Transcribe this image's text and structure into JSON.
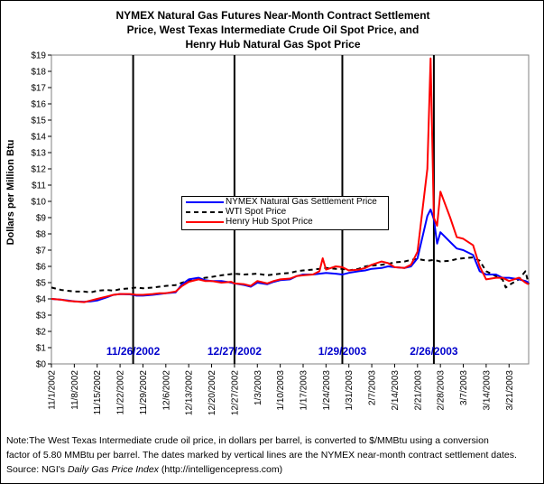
{
  "title_lines": [
    "NYMEX Natural Gas Futures Near-Month Contract Settlement",
    "Price, West Texas Intermediate Crude Oil Spot Price, and",
    "Henry Hub Natural Gas Spot Price"
  ],
  "footnote": {
    "line1": "Note:The West Texas Intermediate crude oil price, in dollars per barrel, is converted to $/MMBtu using a conversion",
    "line2": "factor of 5.80 MMBtu per barrel. The dates marked by vertical lines are the NYMEX near-month contract settlement dates.",
    "line3_prefix": "Source:  NGI's ",
    "line3_italic": "Daily Gas Price Index",
    "line3_suffix": " (http://intelligencepress.com)"
  },
  "chart_data": {
    "type": "line",
    "title": "NYMEX Natural Gas Futures Near-Month Contract Settlement Price, West Texas Intermediate Crude Oil Spot Price, and Henry Hub Natural Gas Spot Price",
    "xlabel": "",
    "ylabel": "Dollars per Million Btu",
    "ylim": [
      0,
      19
    ],
    "y_ticks": [
      "$0",
      "$1",
      "$2",
      "$3",
      "$4",
      "$5",
      "$6",
      "$7",
      "$8",
      "$9",
      "$10",
      "$11",
      "$12",
      "$13",
      "$14",
      "$15",
      "$16",
      "$17",
      "$18",
      "$19"
    ],
    "x_range": [
      "2002-11-01",
      "2003-03-27"
    ],
    "x_ticks": [
      "11/1/2002",
      "11/8/2002",
      "11/15/2002",
      "11/22/2002",
      "11/29/2002",
      "12/6/2002",
      "12/13/2002",
      "12/20/2002",
      "12/27/2002",
      "1/3/2003",
      "1/10/2003",
      "1/17/2003",
      "1/24/2003",
      "1/31/2003",
      "2/7/2003",
      "2/14/2003",
      "2/21/2003",
      "2/28/2003",
      "3/7/2003",
      "3/14/2003",
      "3/21/2003"
    ],
    "grid": false,
    "legend_position": "center-left",
    "settlement_lines": [
      {
        "date": "2002-11-26",
        "label": "11/26/2002"
      },
      {
        "date": "2002-12-27",
        "label": "12/27/2002"
      },
      {
        "date": "2003-01-29",
        "label": "1/29/2003"
      },
      {
        "date": "2003-02-26",
        "label": "2/26/2003"
      }
    ],
    "series": [
      {
        "name": "NYMEX Natural Gas Settlement Price",
        "color": "#0000ff",
        "style": "solid",
        "points": [
          [
            "2002-11-01",
            4.0
          ],
          [
            "2002-11-04",
            3.95
          ],
          [
            "2002-11-06",
            3.9
          ],
          [
            "2002-11-08",
            3.85
          ],
          [
            "2002-11-11",
            3.82
          ],
          [
            "2002-11-13",
            3.85
          ],
          [
            "2002-11-15",
            3.9
          ],
          [
            "2002-11-18",
            4.1
          ],
          [
            "2002-11-20",
            4.25
          ],
          [
            "2002-11-22",
            4.3
          ],
          [
            "2002-11-25",
            4.28
          ],
          [
            "2002-11-26",
            4.25
          ],
          [
            "2002-11-27",
            4.2
          ],
          [
            "2002-11-29",
            4.2
          ],
          [
            "2002-12-02",
            4.25
          ],
          [
            "2002-12-04",
            4.3
          ],
          [
            "2002-12-06",
            4.35
          ],
          [
            "2002-12-09",
            4.4
          ],
          [
            "2002-12-11",
            4.9
          ],
          [
            "2002-12-13",
            5.2
          ],
          [
            "2002-12-16",
            5.3
          ],
          [
            "2002-12-18",
            5.15
          ],
          [
            "2002-12-20",
            5.1
          ],
          [
            "2002-12-23",
            5.1
          ],
          [
            "2002-12-26",
            5.0
          ],
          [
            "2002-12-27",
            4.95
          ],
          [
            "2002-12-30",
            4.85
          ],
          [
            "2003-01-01",
            4.75
          ],
          [
            "2003-01-03",
            5.0
          ],
          [
            "2003-01-06",
            4.9
          ],
          [
            "2003-01-08",
            5.05
          ],
          [
            "2003-01-10",
            5.15
          ],
          [
            "2003-01-13",
            5.2
          ],
          [
            "2003-01-15",
            5.4
          ],
          [
            "2003-01-17",
            5.5
          ],
          [
            "2003-01-20",
            5.5
          ],
          [
            "2003-01-22",
            5.55
          ],
          [
            "2003-01-24",
            5.6
          ],
          [
            "2003-01-27",
            5.55
          ],
          [
            "2003-01-29",
            5.5
          ],
          [
            "2003-01-31",
            5.6
          ],
          [
            "2003-02-03",
            5.7
          ],
          [
            "2003-02-05",
            5.75
          ],
          [
            "2003-02-07",
            5.85
          ],
          [
            "2003-02-10",
            5.9
          ],
          [
            "2003-02-12",
            6.0
          ],
          [
            "2003-02-14",
            5.95
          ],
          [
            "2003-02-17",
            5.9
          ],
          [
            "2003-02-19",
            6.0
          ],
          [
            "2003-02-21",
            6.5
          ],
          [
            "2003-02-24",
            9.1
          ],
          [
            "2003-02-25",
            9.5
          ],
          [
            "2003-02-26",
            8.9
          ],
          [
            "2003-02-27",
            7.4
          ],
          [
            "2003-02-28",
            8.1
          ],
          [
            "2003-03-03",
            7.5
          ],
          [
            "2003-03-05",
            7.1
          ],
          [
            "2003-03-07",
            7.0
          ],
          [
            "2003-03-10",
            6.7
          ],
          [
            "2003-03-12",
            5.7
          ],
          [
            "2003-03-14",
            5.5
          ],
          [
            "2003-03-17",
            5.5
          ],
          [
            "2003-03-19",
            5.3
          ],
          [
            "2003-03-21",
            5.3
          ],
          [
            "2003-03-24",
            5.2
          ],
          [
            "2003-03-26",
            5.1
          ],
          [
            "2003-03-27",
            5.0
          ]
        ]
      },
      {
        "name": "WTI Spot Price",
        "color": "#000000",
        "style": "dashed",
        "points": [
          [
            "2002-11-01",
            4.7
          ],
          [
            "2002-11-04",
            4.55
          ],
          [
            "2002-11-06",
            4.5
          ],
          [
            "2002-11-08",
            4.45
          ],
          [
            "2002-11-11",
            4.45
          ],
          [
            "2002-11-13",
            4.4
          ],
          [
            "2002-11-15",
            4.5
          ],
          [
            "2002-11-18",
            4.55
          ],
          [
            "2002-11-20",
            4.5
          ],
          [
            "2002-11-22",
            4.6
          ],
          [
            "2002-11-25",
            4.65
          ],
          [
            "2002-11-27",
            4.7
          ],
          [
            "2002-11-29",
            4.65
          ],
          [
            "2002-12-02",
            4.7
          ],
          [
            "2002-12-04",
            4.75
          ],
          [
            "2002-12-06",
            4.8
          ],
          [
            "2002-12-09",
            4.85
          ],
          [
            "2002-12-11",
            5.0
          ],
          [
            "2002-12-13",
            5.1
          ],
          [
            "2002-12-16",
            5.2
          ],
          [
            "2002-12-18",
            5.3
          ],
          [
            "2002-12-20",
            5.35
          ],
          [
            "2002-12-23",
            5.45
          ],
          [
            "2002-12-27",
            5.55
          ],
          [
            "2002-12-30",
            5.5
          ],
          [
            "2003-01-03",
            5.55
          ],
          [
            "2003-01-06",
            5.45
          ],
          [
            "2003-01-08",
            5.5
          ],
          [
            "2003-01-10",
            5.55
          ],
          [
            "2003-01-13",
            5.6
          ],
          [
            "2003-01-15",
            5.7
          ],
          [
            "2003-01-17",
            5.75
          ],
          [
            "2003-01-20",
            5.8
          ],
          [
            "2003-01-22",
            5.85
          ],
          [
            "2003-01-24",
            5.9
          ],
          [
            "2003-01-27",
            5.85
          ],
          [
            "2003-01-29",
            5.85
          ],
          [
            "2003-01-31",
            5.75
          ],
          [
            "2003-02-03",
            5.85
          ],
          [
            "2003-02-05",
            6.0
          ],
          [
            "2003-02-07",
            6.05
          ],
          [
            "2003-02-10",
            6.1
          ],
          [
            "2003-02-12",
            6.15
          ],
          [
            "2003-02-14",
            6.25
          ],
          [
            "2003-02-17",
            6.3
          ],
          [
            "2003-02-19",
            6.4
          ],
          [
            "2003-02-21",
            6.45
          ],
          [
            "2003-02-24",
            6.35
          ],
          [
            "2003-02-26",
            6.4
          ],
          [
            "2003-02-28",
            6.3
          ],
          [
            "2003-03-03",
            6.35
          ],
          [
            "2003-03-05",
            6.45
          ],
          [
            "2003-03-07",
            6.5
          ],
          [
            "2003-03-10",
            6.55
          ],
          [
            "2003-03-12",
            6.35
          ],
          [
            "2003-03-14",
            5.7
          ],
          [
            "2003-03-17",
            5.4
          ],
          [
            "2003-03-19",
            5.2
          ],
          [
            "2003-03-20",
            4.7
          ],
          [
            "2003-03-21",
            4.85
          ],
          [
            "2003-03-24",
            5.2
          ],
          [
            "2003-03-26",
            5.7
          ],
          [
            "2003-03-27",
            4.9
          ]
        ]
      },
      {
        "name": "Henry Hub Spot Price",
        "color": "#ff0000",
        "style": "solid",
        "points": [
          [
            "2002-11-01",
            4.0
          ],
          [
            "2002-11-04",
            3.95
          ],
          [
            "2002-11-06",
            3.88
          ],
          [
            "2002-11-08",
            3.85
          ],
          [
            "2002-11-11",
            3.8
          ],
          [
            "2002-11-13",
            3.9
          ],
          [
            "2002-11-15",
            4.0
          ],
          [
            "2002-11-18",
            4.15
          ],
          [
            "2002-11-20",
            4.25
          ],
          [
            "2002-11-22",
            4.3
          ],
          [
            "2002-11-25",
            4.3
          ],
          [
            "2002-11-27",
            4.25
          ],
          [
            "2002-11-29",
            4.25
          ],
          [
            "2002-12-02",
            4.3
          ],
          [
            "2002-12-04",
            4.35
          ],
          [
            "2002-12-06",
            4.35
          ],
          [
            "2002-12-09",
            4.45
          ],
          [
            "2002-12-11",
            4.8
          ],
          [
            "2002-12-13",
            5.05
          ],
          [
            "2002-12-16",
            5.2
          ],
          [
            "2002-12-18",
            5.1
          ],
          [
            "2002-12-20",
            5.1
          ],
          [
            "2002-12-23",
            5.0
          ],
          [
            "2002-12-26",
            5.05
          ],
          [
            "2002-12-27",
            4.95
          ],
          [
            "2002-12-30",
            4.9
          ],
          [
            "2003-01-01",
            4.8
          ],
          [
            "2003-01-03",
            5.1
          ],
          [
            "2003-01-06",
            4.95
          ],
          [
            "2003-01-08",
            5.1
          ],
          [
            "2003-01-10",
            5.2
          ],
          [
            "2003-01-13",
            5.25
          ],
          [
            "2003-01-15",
            5.4
          ],
          [
            "2003-01-17",
            5.45
          ],
          [
            "2003-01-20",
            5.5
          ],
          [
            "2003-01-22",
            5.7
          ],
          [
            "2003-01-23",
            6.5
          ],
          [
            "2003-01-24",
            5.8
          ],
          [
            "2003-01-27",
            6.0
          ],
          [
            "2003-01-29",
            5.95
          ],
          [
            "2003-01-31",
            5.75
          ],
          [
            "2003-02-03",
            5.8
          ],
          [
            "2003-02-05",
            5.9
          ],
          [
            "2003-02-07",
            6.1
          ],
          [
            "2003-02-10",
            6.3
          ],
          [
            "2003-02-12",
            6.2
          ],
          [
            "2003-02-14",
            5.95
          ],
          [
            "2003-02-17",
            5.9
          ],
          [
            "2003-02-19",
            6.1
          ],
          [
            "2003-02-21",
            6.9
          ],
          [
            "2003-02-24",
            12.0
          ],
          [
            "2003-02-25",
            18.8
          ],
          [
            "2003-02-26",
            9.0
          ],
          [
            "2003-02-27",
            8.5
          ],
          [
            "2003-02-28",
            10.6
          ],
          [
            "2003-03-03",
            9.0
          ],
          [
            "2003-03-05",
            7.8
          ],
          [
            "2003-03-07",
            7.7
          ],
          [
            "2003-03-10",
            7.3
          ],
          [
            "2003-03-12",
            6.0
          ],
          [
            "2003-03-14",
            5.2
          ],
          [
            "2003-03-17",
            5.3
          ],
          [
            "2003-03-19",
            5.3
          ],
          [
            "2003-03-21",
            5.1
          ],
          [
            "2003-03-24",
            5.3
          ],
          [
            "2003-03-26",
            5.0
          ],
          [
            "2003-03-27",
            4.9
          ]
        ]
      }
    ]
  }
}
